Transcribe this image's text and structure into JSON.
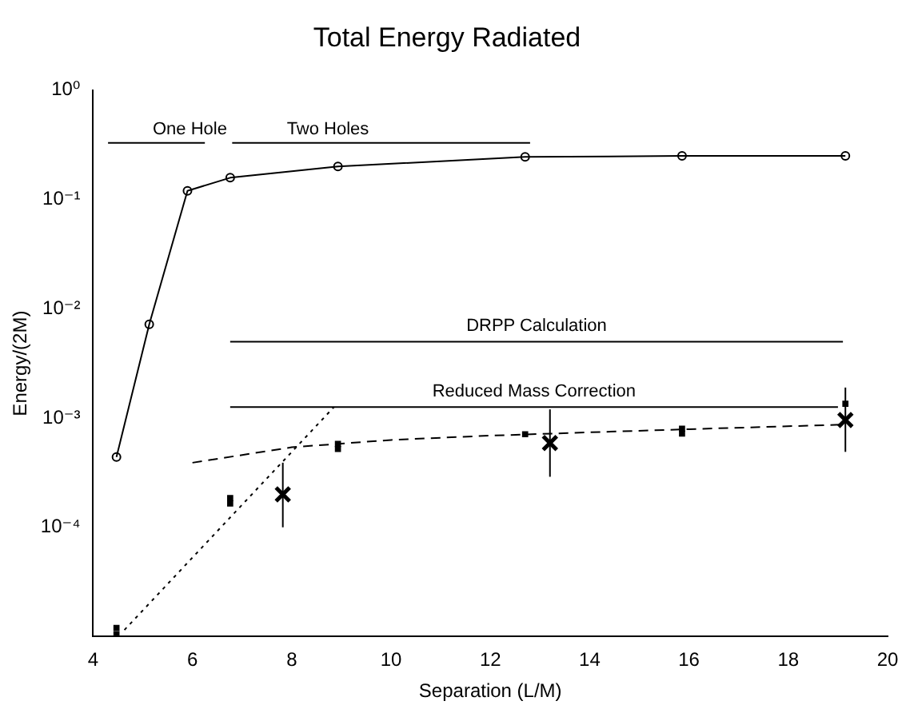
{
  "chart_data": {
    "type": "line",
    "title": "Total Energy Radiated",
    "xlabel": "Separation (L/M)",
    "ylabel": "Energy/(2M)",
    "log": "y",
    "grid": false,
    "legend": false,
    "xlim": [
      4,
      20
    ],
    "xticks": [
      4,
      6,
      8,
      10,
      12,
      14,
      16,
      18,
      20
    ],
    "ylim": [
      1e-05,
      1
    ],
    "yticks": [
      {
        "value": 1,
        "label": "10⁰"
      },
      {
        "value": 0.1,
        "label": "10⁻¹"
      },
      {
        "value": 0.01,
        "label": "10⁻²"
      },
      {
        "value": 0.001,
        "label": "10⁻³"
      },
      {
        "value": 0.0001,
        "label": "10⁻⁴"
      }
    ],
    "series": [
      {
        "color": "#000000",
        "marker": "circle",
        "line_style": "solid",
        "x": [
          4.47,
          5.13,
          5.9,
          6.76,
          8.93,
          12.7,
          15.86,
          19.15
        ],
        "values": [
          0.00044,
          0.0072,
          0.12,
          0.158,
          0.2,
          0.245,
          0.25,
          0.25
        ]
      },
      {
        "color": "#000000",
        "marker": "none",
        "line_style": "dashed",
        "x": [
          6,
          8,
          10,
          12,
          14,
          16,
          19.1
        ],
        "values": [
          0.00039,
          0.00054,
          0.00063,
          0.00069,
          0.00074,
          0.00079,
          0.00087
        ]
      },
      {
        "color": "#000000",
        "marker": "none",
        "line_style": "dotted",
        "x": [
          4.63,
          8.85
        ],
        "values": [
          1.15e-05,
          0.00126
        ]
      },
      {
        "name": "DRPP Calculation",
        "color": "#000000",
        "marker": "none",
        "line_style": "solid",
        "x": [
          6.76,
          19.1
        ],
        "values": [
          0.005,
          0.005
        ]
      },
      {
        "name": "Reduced Mass Correction",
        "color": "#000000",
        "marker": "none",
        "line_style": "solid",
        "x": [
          6.76,
          19.0
        ],
        "values": [
          0.00126,
          0.00126
        ]
      },
      {
        "type": "scatter",
        "color": "#000000",
        "marker": "square",
        "x": [
          4.47,
          4.47,
          6.76,
          6.76,
          8.93,
          8.93,
          12.7,
          15.86,
          15.86,
          19.15
        ],
        "values": [
          1.2e-05,
          1.05e-05,
          0.000185,
          0.000165,
          0.00058,
          0.00052,
          0.00071,
          0.0008,
          0.00072,
          0.00135
        ]
      },
      {
        "type": "scatter",
        "color": "#000000",
        "marker": "cross",
        "x": [
          7.82,
          13.2,
          19.15
        ],
        "values": [
          0.0002,
          0.00059,
          0.00096
        ],
        "errors": [
          [
            0.0001,
            0.00039
          ],
          [
            0.00029,
            0.0012
          ],
          [
            0.00049,
            0.0019
          ]
        ]
      },
      {
        "color": "#000000",
        "marker": "none",
        "line_style": "solid",
        "x": [
          6.25,
          4.3
        ],
        "values": [
          0.33,
          0.33
        ]
      },
      {
        "color": "#000000",
        "marker": "none",
        "line_style": "solid",
        "x": [
          6.8,
          12.8
        ],
        "values": [
          0.33,
          0.33
        ]
      }
    ],
    "annotations": [
      {
        "text": "One Hole",
        "x": 5.2,
        "y": 0.33
      },
      {
        "text": "Two Holes",
        "x": 7.9,
        "y": 0.33
      }
    ]
  }
}
